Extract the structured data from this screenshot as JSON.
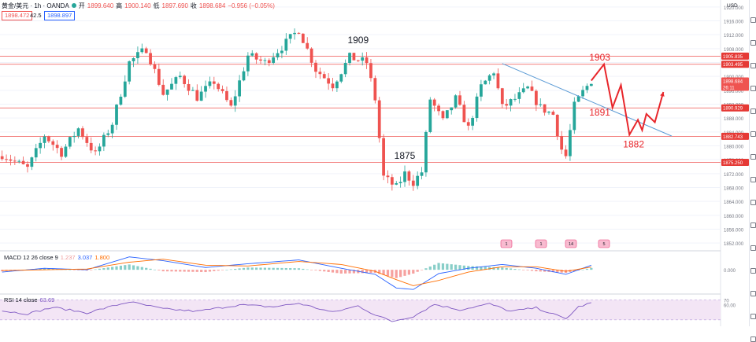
{
  "header": {
    "symbol": "黄金/美元 · 1h · OANDA",
    "open_label": "开",
    "open": "1899.640",
    "high_label": "高",
    "high": "1900.140",
    "low_label": "低",
    "low": "1897.690",
    "close_label": "收",
    "close": "1898.684",
    "change": "−0.956 (−0.05%)",
    "bid": "1898.472",
    "spread": "42.5",
    "ask": "1898.897"
  },
  "colors": {
    "up": "#26a69a",
    "down": "#ef5350",
    "level_line": "#ef5350",
    "trend_line": "#5b9bd5",
    "forecast": "#e8262b",
    "macd_line": "#2962ff",
    "signal_line": "#ff6d00",
    "rsi_line": "#7e57c2",
    "rsi_band": "#f3e5f5"
  },
  "chart_data": {
    "type": "candlestick",
    "axis_unit": "USD",
    "y_axis": {
      "range": [
        1850,
        1922
      ],
      "ticks": [
        "1920.000",
        "1916.000",
        "1912.000",
        "1908.000",
        "1904.000",
        "1900.000",
        "1896.000",
        "1892.000",
        "1888.000",
        "1884.000",
        "1880.000",
        "1876.000",
        "1872.000",
        "1868.000",
        "1864.000",
        "1860.000",
        "1856.000",
        "1852.000"
      ]
    },
    "price_labels": [
      {
        "value": 1905.835,
        "text": "1905.835"
      },
      {
        "value": 1903.495,
        "text": "1903.495"
      },
      {
        "value": 1898.684,
        "text": "1898.684",
        "countdown": "26:11"
      },
      {
        "value": 1890.929,
        "text": "1890.929"
      },
      {
        "value": 1882.743,
        "text": "1882.743"
      },
      {
        "value": 1875.25,
        "text": "1875.250"
      }
    ],
    "horizontal_levels": [
      1905.835,
      1903.495,
      1890.929,
      1882.743,
      1875.25
    ],
    "trendline": {
      "from": {
        "bar": 118,
        "price": 1903.7
      },
      "to": {
        "bar": 158,
        "price": 1882.8
      }
    },
    "annotations": [
      {
        "text": "1909",
        "bar": 84,
        "price": 1909.5,
        "color": "dark"
      },
      {
        "text": "1875",
        "bar": 95,
        "price": 1876.3,
        "color": "dark"
      },
      {
        "text": "1903",
        "bar": 141,
        "price": 1904.6,
        "color": "red"
      },
      {
        "text": "1891",
        "bar": 141,
        "price": 1888.7,
        "color": "red"
      },
      {
        "text": "1882",
        "bar": 149,
        "price": 1879.6,
        "color": "red"
      }
    ],
    "forecast_path": [
      {
        "bar": 139,
        "price": 1898.8
      },
      {
        "bar": 142,
        "price": 1903.5
      },
      {
        "bar": 144,
        "price": 1891.0
      },
      {
        "bar": 146,
        "price": 1897.5
      },
      {
        "bar": 148,
        "price": 1883.2
      },
      {
        "bar": 150,
        "price": 1887.5
      },
      {
        "bar": 151,
        "price": 1884.5
      },
      {
        "bar": 152,
        "price": 1889.2
      },
      {
        "bar": 154,
        "price": 1886.8
      },
      {
        "bar": 156,
        "price": 1895.5
      }
    ],
    "anchor_prices": [
      {
        "bar": 0,
        "price": 1877.5
      },
      {
        "bar": 6,
        "price": 1873.5
      },
      {
        "bar": 10,
        "price": 1883.0
      },
      {
        "bar": 14,
        "price": 1878.0
      },
      {
        "bar": 18,
        "price": 1885.0
      },
      {
        "bar": 22,
        "price": 1877.5
      },
      {
        "bar": 26,
        "price": 1886.5
      },
      {
        "bar": 30,
        "price": 1904.0
      },
      {
        "bar": 34,
        "price": 1908.0
      },
      {
        "bar": 38,
        "price": 1895.0
      },
      {
        "bar": 42,
        "price": 1900.0
      },
      {
        "bar": 46,
        "price": 1894.0
      },
      {
        "bar": 50,
        "price": 1898.5
      },
      {
        "bar": 54,
        "price": 1891.0
      },
      {
        "bar": 58,
        "price": 1906.0
      },
      {
        "bar": 62,
        "price": 1904.0
      },
      {
        "bar": 66,
        "price": 1908.5
      },
      {
        "bar": 70,
        "price": 1913.5
      },
      {
        "bar": 74,
        "price": 1902.0
      },
      {
        "bar": 78,
        "price": 1897.5
      },
      {
        "bar": 82,
        "price": 1905.5
      },
      {
        "bar": 86,
        "price": 1904.0
      },
      {
        "bar": 88,
        "price": 1893.5
      },
      {
        "bar": 90,
        "price": 1871.0
      },
      {
        "bar": 93,
        "price": 1868.0
      },
      {
        "bar": 95,
        "price": 1872.0
      },
      {
        "bar": 97,
        "price": 1869.5
      },
      {
        "bar": 99,
        "price": 1872.5
      },
      {
        "bar": 101,
        "price": 1893.5
      },
      {
        "bar": 104,
        "price": 1887.0
      },
      {
        "bar": 107,
        "price": 1893.5
      },
      {
        "bar": 110,
        "price": 1885.0
      },
      {
        "bar": 113,
        "price": 1897.0
      },
      {
        "bar": 116,
        "price": 1901.5
      },
      {
        "bar": 118,
        "price": 1891.0
      },
      {
        "bar": 121,
        "price": 1893.5
      },
      {
        "bar": 124,
        "price": 1896.5
      },
      {
        "bar": 127,
        "price": 1891.0
      },
      {
        "bar": 130,
        "price": 1889.0
      },
      {
        "bar": 132,
        "price": 1879.0
      },
      {
        "bar": 133,
        "price": 1877.0
      },
      {
        "bar": 135,
        "price": 1891.5
      },
      {
        "bar": 137,
        "price": 1895.5
      },
      {
        "bar": 139,
        "price": 1898.8
      }
    ],
    "events": [
      "1",
      "1",
      "14",
      "5"
    ],
    "macd": {
      "label": "MACD 12 26 close 9",
      "hist": "1.237",
      "macd": "3.037",
      "signal": "1.800",
      "axis_ticks": [
        "0.000"
      ],
      "range": [
        -16,
        12
      ],
      "anchor_values": [
        {
          "bar": 0,
          "macd": -1.5,
          "signal": -0.5
        },
        {
          "bar": 10,
          "macd": 1.0,
          "signal": 0.0
        },
        {
          "bar": 20,
          "macd": 0.0,
          "signal": 0.5
        },
        {
          "bar": 30,
          "macd": 8.5,
          "signal": 5.0
        },
        {
          "bar": 38,
          "macd": 6.0,
          "signal": 7.0
        },
        {
          "bar": 48,
          "macd": 1.5,
          "signal": 3.0
        },
        {
          "bar": 58,
          "macd": 4.0,
          "signal": 2.5
        },
        {
          "bar": 70,
          "macd": 6.5,
          "signal": 5.5
        },
        {
          "bar": 80,
          "macd": 1.0,
          "signal": 3.5
        },
        {
          "bar": 88,
          "macd": -3.0,
          "signal": -1.0
        },
        {
          "bar": 93,
          "macd": -12.0,
          "signal": -6.5
        },
        {
          "bar": 97,
          "macd": -13.0,
          "signal": -10.5
        },
        {
          "bar": 103,
          "macd": -2.5,
          "signal": -7.0
        },
        {
          "bar": 110,
          "macd": 1.0,
          "signal": -1.5
        },
        {
          "bar": 118,
          "macd": 3.5,
          "signal": 2.0
        },
        {
          "bar": 126,
          "macd": 1.0,
          "signal": 2.0
        },
        {
          "bar": 133,
          "macd": -3.0,
          "signal": -1.0
        },
        {
          "bar": 139,
          "macd": 3.0,
          "signal": 1.8
        }
      ]
    },
    "rsi": {
      "label": "RSI 14 close",
      "value": "63.69",
      "axis_ticks": [
        "70",
        "60.00"
      ],
      "range": [
        25,
        80
      ],
      "band": [
        30,
        70
      ],
      "anchor_values": [
        {
          "bar": 0,
          "v": 48
        },
        {
          "bar": 6,
          "v": 42
        },
        {
          "bar": 12,
          "v": 55
        },
        {
          "bar": 20,
          "v": 44
        },
        {
          "bar": 30,
          "v": 66
        },
        {
          "bar": 38,
          "v": 52
        },
        {
          "bar": 46,
          "v": 47
        },
        {
          "bar": 56,
          "v": 60
        },
        {
          "bar": 64,
          "v": 56
        },
        {
          "bar": 70,
          "v": 63
        },
        {
          "bar": 78,
          "v": 45
        },
        {
          "bar": 84,
          "v": 58
        },
        {
          "bar": 88,
          "v": 40
        },
        {
          "bar": 92,
          "v": 27
        },
        {
          "bar": 97,
          "v": 37
        },
        {
          "bar": 102,
          "v": 61
        },
        {
          "bar": 108,
          "v": 50
        },
        {
          "bar": 115,
          "v": 62
        },
        {
          "bar": 120,
          "v": 47
        },
        {
          "bar": 126,
          "v": 54
        },
        {
          "bar": 133,
          "v": 32
        },
        {
          "bar": 136,
          "v": 56
        },
        {
          "bar": 139,
          "v": 63.69
        }
      ]
    }
  }
}
